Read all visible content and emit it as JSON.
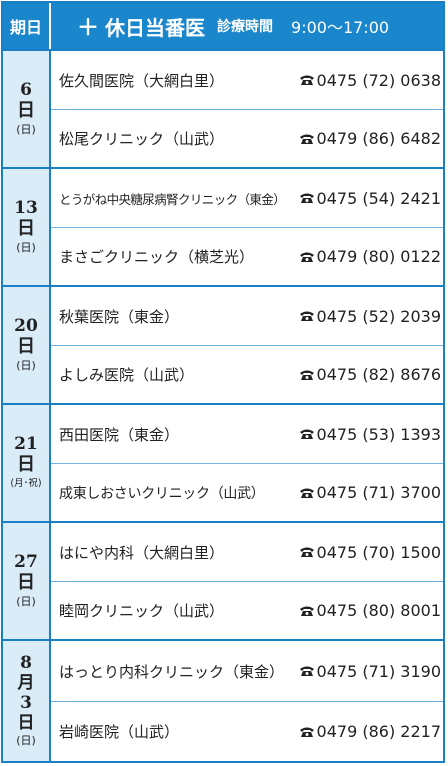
{
  "header": {
    "day_label": "期日",
    "plus": "＋",
    "title": "休日当番医",
    "subtitle": "診療時間",
    "hours": "9:00〜17:00"
  },
  "colors": {
    "accent": "#1a86cc",
    "day_bg": "#d9ecf8",
    "text": "#222222"
  },
  "days": [
    {
      "num": "6",
      "nichi": "日",
      "dow": "(日)",
      "clinics": [
        {
          "name": "佐久間医院（大網白里）",
          "phone": "0475 (72) 0638"
        },
        {
          "name": "松尾クリニック（山武）",
          "phone": "0479 (86) 6482"
        }
      ]
    },
    {
      "num": "13",
      "nichi": "日",
      "dow": "(日)",
      "clinics": [
        {
          "name": "とうがね中央糖尿病腎クリニック（東金）",
          "phone": "0475 (54) 2421"
        },
        {
          "name": "まさごクリニック（横芝光）",
          "phone": "0479 (80) 0122"
        }
      ]
    },
    {
      "num": "20",
      "nichi": "日",
      "dow": "(日)",
      "clinics": [
        {
          "name": "秋葉医院（東金）",
          "phone": "0475 (52) 2039"
        },
        {
          "name": "よしみ医院（山武）",
          "phone": "0475 (82) 8676"
        }
      ]
    },
    {
      "num": "21",
      "nichi": "日",
      "dow": "(月･祝)",
      "clinics": [
        {
          "name": "西田医院（東金）",
          "phone": "0475 (53) 1393"
        },
        {
          "name": "成東しおさいクリニック（山武）",
          "phone": "0475 (71) 3700"
        }
      ]
    },
    {
      "num": "27",
      "nichi": "日",
      "dow": "(日)",
      "clinics": [
        {
          "name": "はにや内科（大網白里）",
          "phone": "0475 (70) 1500"
        },
        {
          "name": "睦岡クリニック（山武）",
          "phone": "0475 (80) 8001"
        }
      ]
    },
    {
      "month": "8",
      "month_char": "月",
      "num": "3",
      "nichi": "日",
      "dow": "(日)",
      "clinics": [
        {
          "name": "はっとり内科クリニック（東金）",
          "phone": "0475 (71) 3190"
        },
        {
          "name": "岩崎医院（山武）",
          "phone": "0479 (86) 2217"
        }
      ]
    }
  ]
}
